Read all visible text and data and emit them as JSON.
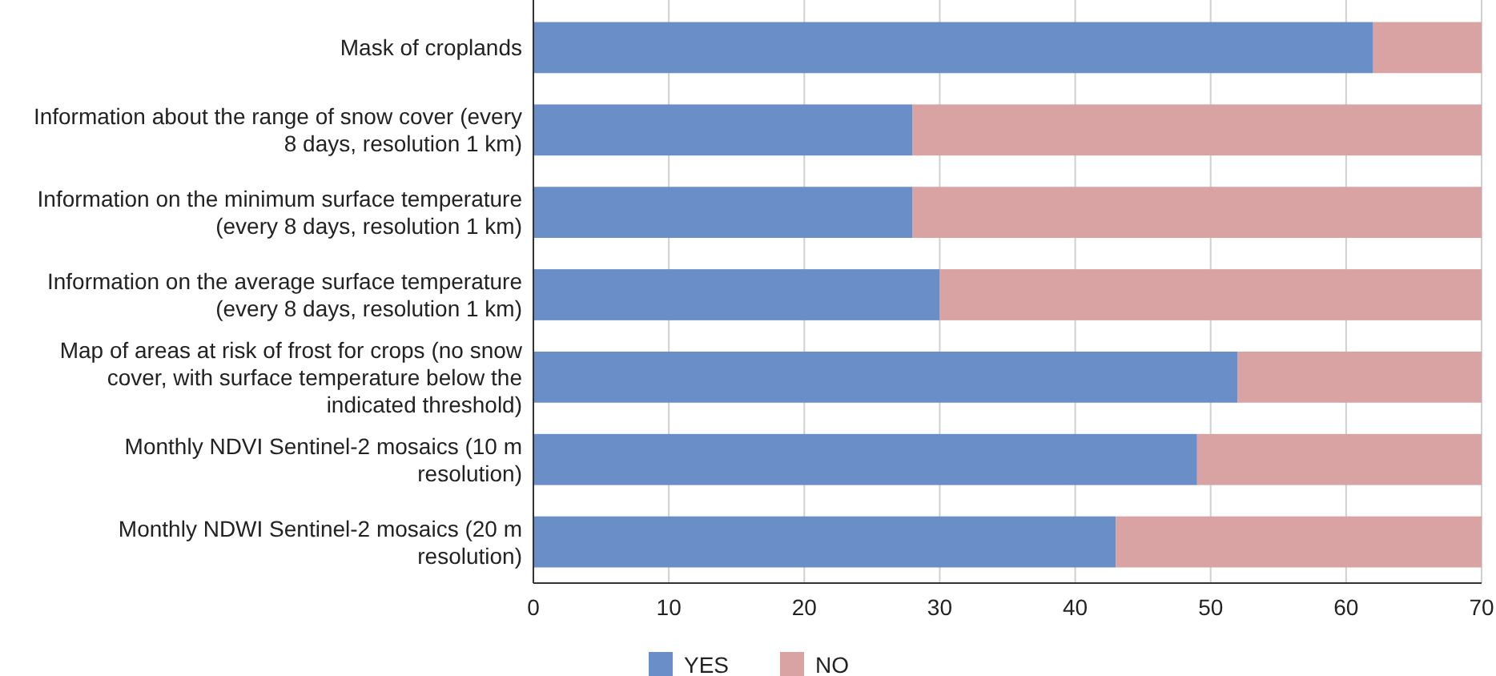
{
  "chart_data": {
    "type": "bar",
    "orientation": "horizontal",
    "stacked": true,
    "categories": [
      "Mask of croplands",
      "Information about the range of snow cover (every 8 days, resolution 1 km)",
      "Information on the minimum surface temperature (every 8 days, resolution 1 km)",
      "Information on the average surface temperature (every 8 days, resolution 1 km)",
      "Map of areas at risk of frost for crops (no snow cover, with surface temperature below the indicated threshold)",
      "Monthly NDVI Sentinel-2 mosaics (10 m resolution)",
      "Monthly NDWI Sentinel-2 mosaics (20 m resolution)"
    ],
    "series": [
      {
        "name": "YES",
        "color": "#6a8fc8",
        "values": [
          62,
          28,
          28,
          30,
          52,
          49,
          43
        ]
      },
      {
        "name": "NO",
        "color": "#d9a3a4",
        "values": [
          8,
          42,
          42,
          40,
          18,
          21,
          27
        ]
      }
    ],
    "xlim": [
      0,
      70
    ],
    "xticks": [
      0,
      10,
      20,
      30,
      40,
      50,
      60,
      70
    ],
    "grid": "x",
    "legend": "bottom"
  }
}
